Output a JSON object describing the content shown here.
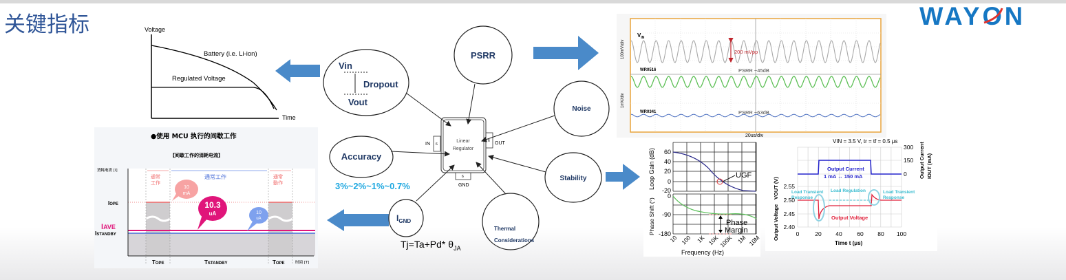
{
  "slide": {
    "title": "关键指标",
    "logo_text": "WAYON",
    "colors": {
      "title": "#2f5597",
      "arrow": "#4a8ac9",
      "logo": "#1677c3",
      "accuracy_text": "#1fa8e0"
    }
  },
  "battery_chart": {
    "ylabel": "Voltage",
    "xlabel": "Time",
    "battery_label": "Battery (i.e. Li-ion)",
    "regulated_label": "Regulated Voltage"
  },
  "bubbles": {
    "dropout": {
      "vin": "Vin",
      "dropout": "Dropout",
      "vout": "Vout"
    },
    "psrr": "PSRR",
    "noise": "Noise",
    "accuracy": "Accuracy",
    "accuracy_values": "3%~2%~1%~0.7%",
    "stability": "Stability",
    "ignd": "I",
    "ignd_sub": "GND",
    "thermal_line1": "Thermal",
    "thermal_line2": "Considerations",
    "formula": "Tj=Ta+Pd* θ",
    "formula_sub": "JA"
  },
  "regulator": {
    "label_line1": "Linear",
    "label_line2": "Regulator",
    "pin_in": "IN",
    "pin_out": "OUT",
    "pin_gnd": "GND",
    "pin_num": "6"
  },
  "mcu_chart": {
    "title": "●使用 MCU 执行的间歇工作",
    "subtitle": "【间歇工作的消耗电流】",
    "ylabel": "消耗电流 [I]",
    "xlabel": "时间 [T]",
    "normal_work_1": [
      "通常",
      "工作"
    ],
    "standby_label": "通常工作",
    "normal_work_2": [
      "通常",
      "動作"
    ],
    "iope": "I",
    "iope_sub": "OPE",
    "iave": "I",
    "iave_sub": "AVE",
    "istandby": "I",
    "istandby_sub": "STANDBY",
    "tope": "T",
    "tope_sub": "OPE",
    "tstandby": "T",
    "tstandby_sub": "STANDBY",
    "bubble_ope": [
      "10",
      "mA"
    ],
    "bubble_ave": [
      "10.3",
      "uA"
    ],
    "bubble_standby": [
      "10",
      "uA"
    ]
  },
  "scope": {
    "vin_label": "V",
    "vin_sub": "IN",
    "vpp": "200 mVpp",
    "ch1_name": "WR0516",
    "ch1_psrr": "PSRR ~45dB",
    "ch2_name": "WR0341",
    "ch2_psrr": "PSRR ~63dB",
    "xdiv": "20us/div",
    "ydiv1": "100mV/div",
    "ydiv2": "1mV/div"
  },
  "bode": {
    "gain_label": "Loop Gain (dB)",
    "phase_label": "Phase Shift (°)",
    "xlabel": "Frequency (Hz)",
    "gain_ticks": [
      "60",
      "40",
      "20",
      "0",
      "-20"
    ],
    "phase_ticks": [
      "0",
      "-90",
      "-180"
    ],
    "freq_ticks": [
      "10",
      "100",
      "1K",
      "10K",
      "100K",
      "1M",
      "10M"
    ],
    "ugf": "UGF",
    "phase_margin": [
      "Phase",
      "Margin"
    ]
  },
  "transient": {
    "title": "VIN = 3.5 V, tr = tf = 0.5 μs",
    "left_ylabel": "Output Voltage",
    "left_ylabel2": "VOUT (V)",
    "right_ylabel": "Output Current",
    "right_ylabel2": "IOUT (mA)",
    "xlabel": "Time  t (μs)",
    "x_ticks": [
      "0",
      "20",
      "40",
      "60",
      "80",
      "100"
    ],
    "v_ticks": [
      "2.55",
      "2.50",
      "2.45",
      "2.40"
    ],
    "i_ticks": [
      "300",
      "150",
      "0"
    ],
    "current_label": "Output Current",
    "current_range": "1 mA ↔ 150 mA",
    "voltage_label": "Output Voltage",
    "load_transient_1": [
      "Load Transient",
      "Response"
    ],
    "load_regulation": "Load Regulation",
    "load_transient_2": [
      "Load Transient",
      "Response"
    ]
  }
}
